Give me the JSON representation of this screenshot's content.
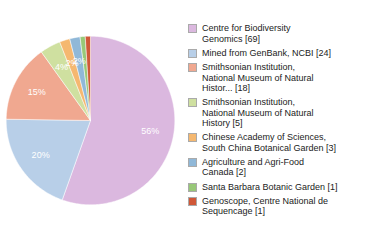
{
  "chart_data": {
    "type": "pie",
    "categories": [
      "Centre for Biodiversity\nGenomics [69]",
      "Mined from GenBank, NCBI [24]",
      "Smithsonian Institution,\nNational Museum of Natural\nHistor... [18]",
      "Smithsonian Institution,\nNational Museum of Natural\nHistory [5]",
      "Chinese Academy of Sciences,\nSouth China Botanical Garden [3]",
      "Agriculture and Agri-Food\nCanada [2]",
      "Santa Barbara Botanic Garden [1]",
      "Genoscope, Centre National de\nSequencage [1]"
    ],
    "values": [
      56,
      20,
      15,
      4,
      2,
      2,
      1,
      1
    ],
    "value_labels": [
      "56%",
      "20%",
      "15%",
      "4%",
      "2%",
      "2%",
      null,
      null
    ],
    "colors": [
      "#dbb8df",
      "#b8cfe8",
      "#f0a890",
      "#cfe0a0",
      "#f5b870",
      "#90b8d8",
      "#98c878",
      "#d05838"
    ],
    "data_labels": true,
    "legend": "right"
  }
}
